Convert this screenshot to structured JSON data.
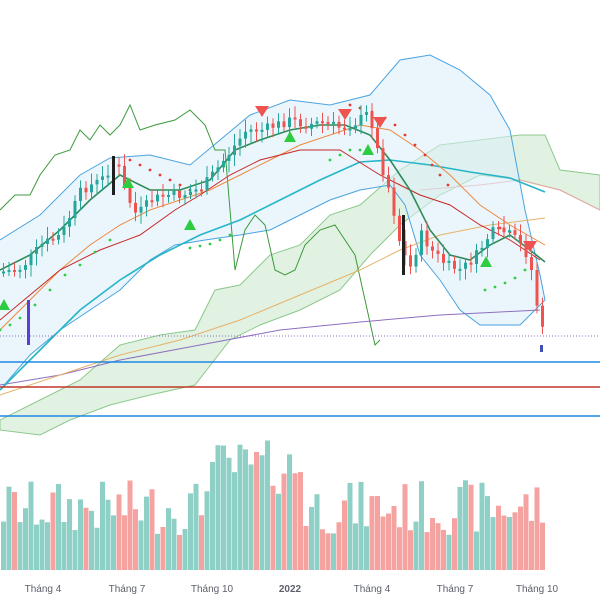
{
  "chart_data": {
    "type": "candlestick",
    "x_ticks": [
      "Tháng 4",
      "Tháng 7",
      "Tháng 10",
      "2022",
      "Tháng 4",
      "Tháng 7",
      "Tháng 10"
    ],
    "colors": {
      "up": "#26a69a",
      "down": "#ef5350",
      "volume_up": "#8fd0c6",
      "volume_down": "#f4a3a1",
      "bollinger": "#4aa3df",
      "sma_fast": "#2e8b57",
      "sma_mid": "#f0883e",
      "sma_slow": "#26b5c8",
      "sma_long": "#e6b26a",
      "sma_200": "#8e6fc0",
      "keltner": "#c62828",
      "cloud": "#8cc98c",
      "psar": "#e53935",
      "psar_up": "#2ecc40",
      "horizontal_lines": [
        "#1e88e5",
        "#c0392b",
        "#1e88e5"
      ]
    },
    "markers": {
      "sell_arrows": 4,
      "buy_arrows": 6
    }
  }
}
